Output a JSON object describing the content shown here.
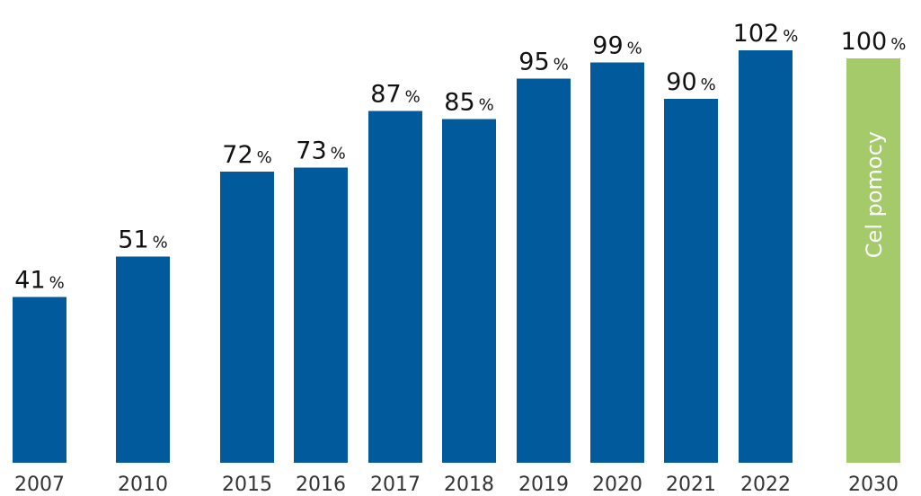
{
  "chart_data": {
    "type": "bar",
    "categories": [
      "2007",
      "2010",
      "2015",
      "2016",
      "2017",
      "2018",
      "2019",
      "2020",
      "2021",
      "2022",
      "2030"
    ],
    "values": [
      41,
      51,
      72,
      73,
      87,
      85,
      95,
      99,
      90,
      102,
      100
    ],
    "unit": "%",
    "target_category": "2030",
    "target_label": "Cel pomocy",
    "ylim": [
      0,
      102
    ],
    "grid": false,
    "colors": {
      "bar": "#005a9b",
      "target": "#a5ca6a"
    }
  }
}
